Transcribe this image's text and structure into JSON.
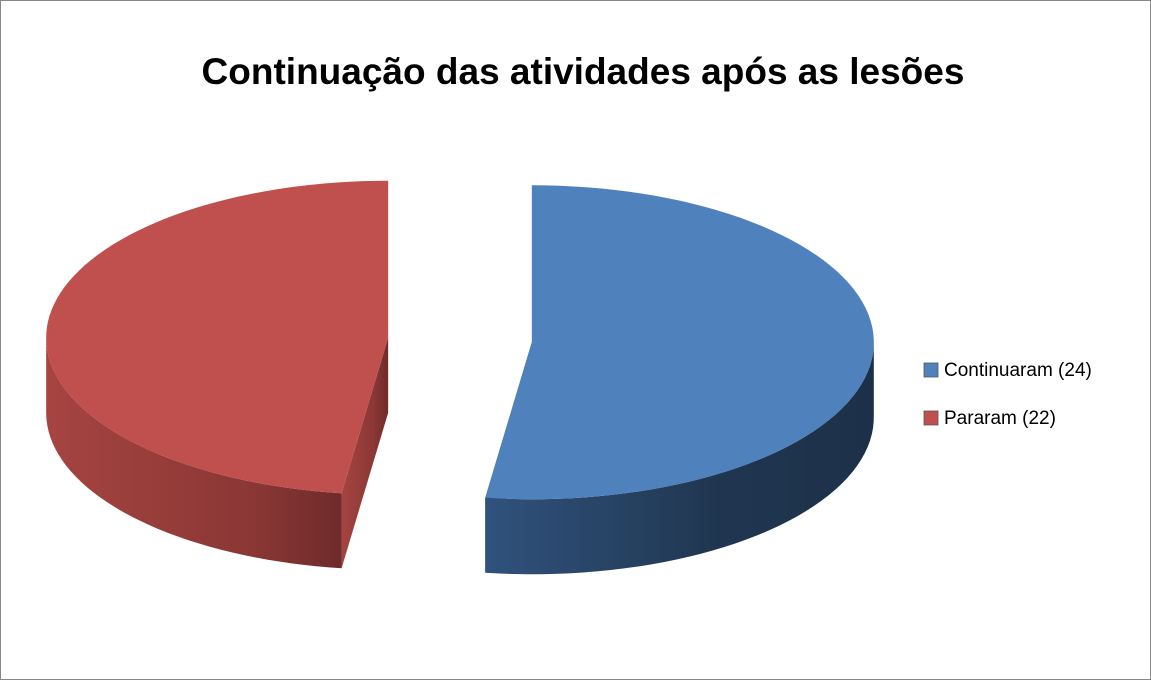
{
  "chart_data": {
    "type": "pie",
    "title": "Continuação das atividades após as lesões",
    "labels": [
      "Continuaram (24)",
      "Pararam (22)"
    ],
    "values": [
      24,
      22
    ],
    "colors": [
      "#4f81bd",
      "#c0504d"
    ],
    "legend": "right"
  }
}
